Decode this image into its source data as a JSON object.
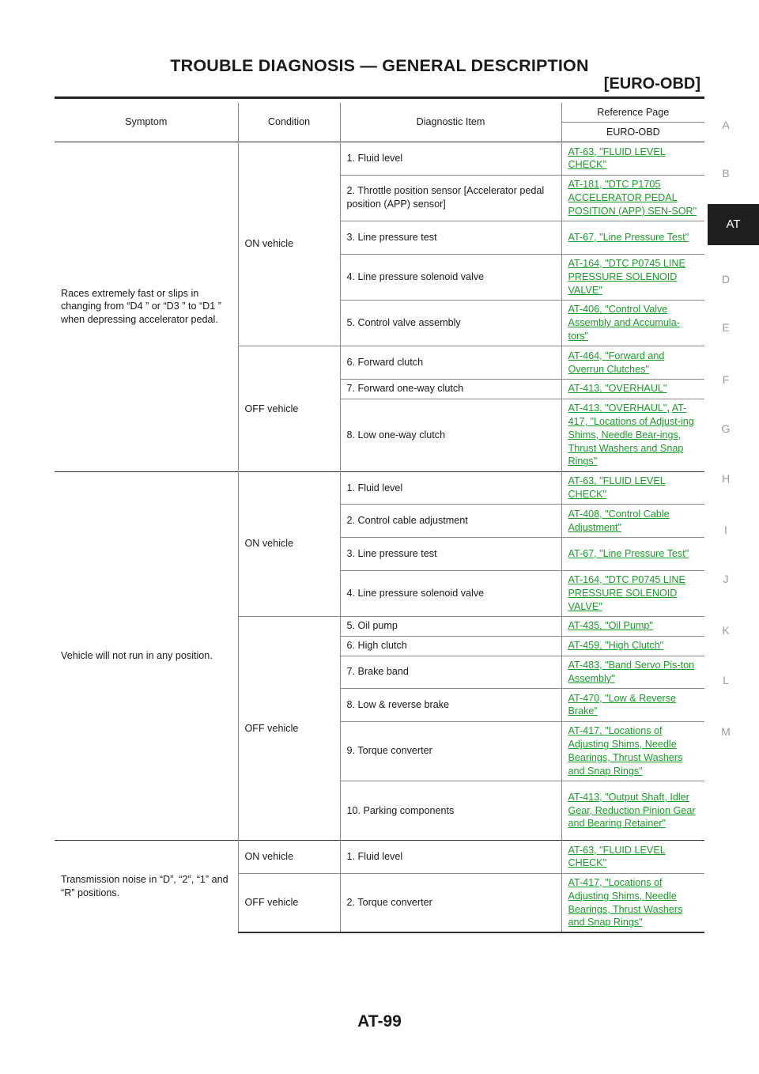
{
  "header": {
    "title": "TROUBLE DIAGNOSIS — GENERAL DESCRIPTION",
    "subtitle": "[EURO-OBD]"
  },
  "side_nav": {
    "letters": [
      "A",
      "B",
      "AT",
      "D",
      "E",
      "F",
      "G",
      "H",
      "I",
      "J",
      "K",
      "L",
      "M"
    ],
    "active": "AT"
  },
  "table": {
    "headers": {
      "symptom": "Symptom",
      "condition": "Condition",
      "item": "Diagnostic Item",
      "reference": "Reference Page",
      "reference_sub": "EURO-OBD"
    },
    "groups": [
      {
        "symptom": "Races extremely fast or slips in changing from “D4 ” or “D3 ” to “D1 ” when depressing accelerator pedal.",
        "conditions": [
          {
            "label": "ON vehicle",
            "rows": [
              {
                "item": "1. Fluid level",
                "ref": "AT-63, \"FLUID LEVEL CHECK\""
              },
              {
                "item": "2. Throttle position sensor [Accelerator pedal position (APP) sensor]",
                "ref": "AT-181, \"DTC P1705 ACCELERATOR PEDAL POSITION (APP) SEN-SOR\""
              },
              {
                "item": "3. Line pressure test",
                "ref": "AT-67, \"Line Pressure Test\""
              },
              {
                "item": "4. Line pressure solenoid valve",
                "ref": "AT-164, \"DTC P0745 LINE PRESSURE SOLENOID VALVE\""
              },
              {
                "item": "5. Control valve assembly",
                "ref": "AT-406, \"Control Valve Assembly and Accumula-tors\""
              }
            ]
          },
          {
            "label": "OFF vehicle",
            "rows": [
              {
                "item": "6. Forward clutch",
                "ref": "AT-464, \"Forward and Overrun Clutches\""
              },
              {
                "item": "7. Forward one-way clutch",
                "ref": "AT-413, \"OVERHAUL\""
              },
              {
                "item": "8. Low one-way clutch",
                "ref": "AT-413, \"OVERHAUL\"",
                "ref_sep": ", ",
                "ref2": "AT-417, \"Locations of Adjust-ing Shims, Needle Bear-ings, Thrust Washers and Snap Rings\""
              }
            ]
          }
        ]
      },
      {
        "symptom": "Vehicle will not run in any position.",
        "conditions": [
          {
            "label": "ON vehicle",
            "rows": [
              {
                "item": "1. Fluid level",
                "ref": "AT-63, \"FLUID LEVEL CHECK\""
              },
              {
                "item": "2. Control cable adjustment",
                "ref": "AT-408, \"Control Cable Adjustment\""
              },
              {
                "item": "3. Line pressure test",
                "ref": "AT-67, \"Line Pressure Test\""
              },
              {
                "item": "4. Line pressure solenoid valve",
                "ref": "AT-164, \"DTC P0745 LINE PRESSURE SOLENOID VALVE\""
              }
            ]
          },
          {
            "label": "OFF vehicle",
            "rows": [
              {
                "item": "5. Oil pump",
                "ref": "AT-435, \"Oil Pump\""
              },
              {
                "item": "6. High clutch",
                "ref": "AT-459, \"High Clutch\""
              },
              {
                "item": "7. Brake band",
                "ref": "AT-483, \"Band Servo Pis-ton Assembly\""
              },
              {
                "item": "8. Low & reverse brake",
                "ref": "AT-470, \"Low & Reverse Brake\""
              },
              {
                "item": "9. Torque converter",
                "ref": "AT-417, \"Locations of Adjusting Shims, Needle Bearings, Thrust Washers and Snap Rings\""
              },
              {
                "item": "10. Parking components",
                "ref": "AT-413, \"Output Shaft, Idler Gear, Reduction Pinion Gear and Bearing Retainer\""
              }
            ]
          }
        ]
      },
      {
        "symptom": "Transmission noise in “D”, “2”, “1” and “R” positions.",
        "conditions": [
          {
            "label": "ON vehicle",
            "rows": [
              {
                "item": "1. Fluid level",
                "ref": "AT-63, \"FLUID LEVEL CHECK\""
              }
            ]
          },
          {
            "label": "OFF vehicle",
            "rows": [
              {
                "item": "2. Torque converter",
                "ref": "AT-417, \"Locations of Adjusting Shims, Needle Bearings, Thrust Washers and Snap Rings\""
              }
            ]
          }
        ]
      }
    ]
  },
  "footer": {
    "page": "AT-99"
  },
  "colors": {
    "link": "#1e9a2c",
    "tab_bg": "#1f1f1f",
    "side_text": "#9a9a9a"
  }
}
